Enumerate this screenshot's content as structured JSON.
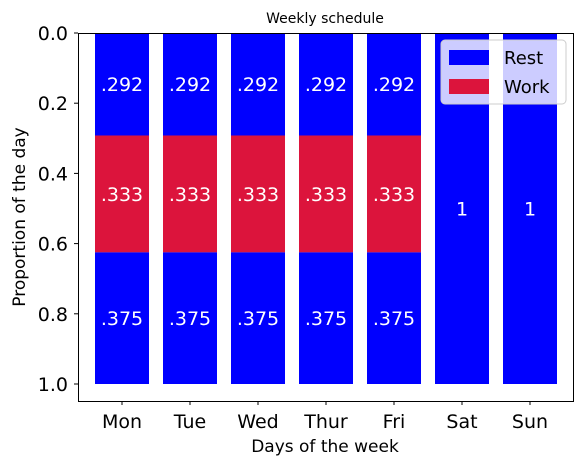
{
  "chart_data": {
    "type": "bar",
    "stacked": true,
    "orientation": "vertical",
    "title": "Weekly schedule",
    "xlabel": "Days of the week",
    "ylabel": "Proportion of the day",
    "categories": [
      "Mon",
      "Tue",
      "Wed",
      "Thur",
      "Fri",
      "Sat",
      "Sun"
    ],
    "ylim": [
      1.0,
      0.0
    ],
    "y_inverted": true,
    "yticks": [
      "0.0",
      "0.2",
      "0.4",
      "0.6",
      "0.8",
      "1.0"
    ],
    "ytick_values": [
      0.0,
      0.2,
      0.4,
      0.6,
      0.8,
      1.0
    ],
    "grid": false,
    "legend_position": "top-right",
    "legend": [
      {
        "label": "Rest",
        "color": "#0000ff"
      },
      {
        "label": "Work",
        "color": "#dc143c"
      }
    ],
    "segments": [
      [
        {
          "series": "Rest",
          "start": 0.0,
          "end": 0.292,
          "label": ".292"
        },
        {
          "series": "Work",
          "start": 0.292,
          "end": 0.625,
          "label": ".333"
        },
        {
          "series": "Rest",
          "start": 0.625,
          "end": 1.0,
          "label": ".375"
        }
      ],
      [
        {
          "series": "Rest",
          "start": 0.0,
          "end": 0.292,
          "label": ".292"
        },
        {
          "series": "Work",
          "start": 0.292,
          "end": 0.625,
          "label": ".333"
        },
        {
          "series": "Rest",
          "start": 0.625,
          "end": 1.0,
          "label": ".375"
        }
      ],
      [
        {
          "series": "Rest",
          "start": 0.0,
          "end": 0.292,
          "label": ".292"
        },
        {
          "series": "Work",
          "start": 0.292,
          "end": 0.625,
          "label": ".333"
        },
        {
          "series": "Rest",
          "start": 0.625,
          "end": 1.0,
          "label": ".375"
        }
      ],
      [
        {
          "series": "Rest",
          "start": 0.0,
          "end": 0.292,
          "label": ".292"
        },
        {
          "series": "Work",
          "start": 0.292,
          "end": 0.625,
          "label": ".333"
        },
        {
          "series": "Rest",
          "start": 0.625,
          "end": 1.0,
          "label": ".375"
        }
      ],
      [
        {
          "series": "Rest",
          "start": 0.0,
          "end": 0.292,
          "label": ".292"
        },
        {
          "series": "Work",
          "start": 0.292,
          "end": 0.625,
          "label": ".333"
        },
        {
          "series": "Rest",
          "start": 0.625,
          "end": 1.0,
          "label": ".375"
        }
      ],
      [
        {
          "series": "Rest",
          "start": 0.0,
          "end": 1.0,
          "label": "1"
        }
      ],
      [
        {
          "series": "Rest",
          "start": 0.0,
          "end": 1.0,
          "label": "1"
        }
      ]
    ]
  }
}
